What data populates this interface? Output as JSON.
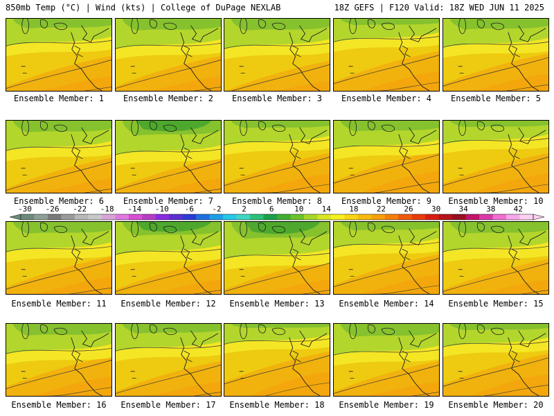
{
  "header": {
    "title_left": "850mb Temp (°C) | Wind (kts) | College of DuPage NEXLAB",
    "title_right": "18Z GEFS | F120 Valid: 18Z WED JUN 11 2025"
  },
  "colorbar": {
    "tick_labels": [
      "-30",
      "-26",
      "-22",
      "-18",
      "-14",
      "-10",
      "-6",
      "-2",
      "2",
      "6",
      "10",
      "14",
      "18",
      "22",
      "26",
      "30",
      "34",
      "38",
      "42"
    ],
    "unit": "°C",
    "colors": [
      "#6e8a7a",
      "#8e9f95",
      "#7a7a7a",
      "#9a9a9a",
      "#b8b8b8",
      "#c8c8c8",
      "#d9a5d9",
      "#e07ae0",
      "#d64fd6",
      "#b63cc6",
      "#8a2be2",
      "#5b2fd0",
      "#2a3bd6",
      "#1f6fe0",
      "#1ea0e6",
      "#25c8e8",
      "#41d6c4",
      "#2cc07a",
      "#1e9e4c",
      "#3fae2e",
      "#6cc22c",
      "#a6d72a",
      "#d8e626",
      "#f5f01e",
      "#f8d514",
      "#f7bb10",
      "#f7a00c",
      "#f57f0a",
      "#ef5a0a",
      "#e83a0a",
      "#d81d10",
      "#b8121a",
      "#951020",
      "#c2146a",
      "#d93aa7",
      "#f06fd0",
      "#f7a6e8",
      "#fbd0f0"
    ]
  },
  "panels": [
    {
      "member": 1,
      "caption": "Ensemble Member: 1",
      "green_level": 0.45,
      "warm_level": 0.45
    },
    {
      "member": 2,
      "caption": "Ensemble Member: 2",
      "green_level": 0.55,
      "warm_level": 0.45
    },
    {
      "member": 3,
      "caption": "Ensemble Member: 3",
      "green_level": 0.55,
      "warm_level": 0.35
    },
    {
      "member": 4,
      "caption": "Ensemble Member: 4",
      "green_level": 0.3,
      "warm_level": 0.55
    },
    {
      "member": 5,
      "caption": "Ensemble Member: 5",
      "green_level": 0.5,
      "warm_level": 0.5
    },
    {
      "member": 6,
      "caption": "Ensemble Member: 6",
      "green_level": 0.55,
      "warm_level": 0.45
    },
    {
      "member": 7,
      "caption": "Ensemble Member: 7",
      "green_level": 0.7,
      "warm_level": 0.45
    },
    {
      "member": 8,
      "caption": "Ensemble Member: 8",
      "green_level": 0.35,
      "warm_level": 0.55
    },
    {
      "member": 9,
      "caption": "Ensemble Member: 9",
      "green_level": 0.5,
      "warm_level": 0.6
    },
    {
      "member": 10,
      "caption": "Ensemble Member: 10",
      "green_level": 0.3,
      "warm_level": 0.55
    },
    {
      "member": 11,
      "caption": "Ensemble Member: 11",
      "green_level": 0.55,
      "warm_level": 0.5
    },
    {
      "member": 12,
      "caption": "Ensemble Member: 12",
      "green_level": 0.65,
      "warm_level": 0.45
    },
    {
      "member": 13,
      "caption": "Ensemble Member: 13",
      "green_level": 0.8,
      "warm_level": 0.45
    },
    {
      "member": 14,
      "caption": "Ensemble Member: 14",
      "green_level": 0.4,
      "warm_level": 0.55
    },
    {
      "member": 15,
      "caption": "Ensemble Member: 15",
      "green_level": 0.55,
      "warm_level": 0.45
    },
    {
      "member": 16,
      "caption": "Ensemble Member: 16",
      "green_level": 0.55,
      "warm_level": 0.55
    },
    {
      "member": 17,
      "caption": "Ensemble Member: 17",
      "green_level": 0.45,
      "warm_level": 0.45
    },
    {
      "member": 18,
      "caption": "Ensemble Member: 18",
      "green_level": 0.2,
      "warm_level": 0.65
    },
    {
      "member": 19,
      "caption": "Ensemble Member: 19",
      "green_level": 0.6,
      "warm_level": 0.45
    },
    {
      "member": 20,
      "caption": "Ensemble Member: 20",
      "green_level": 0.3,
      "warm_level": 0.6
    }
  ]
}
